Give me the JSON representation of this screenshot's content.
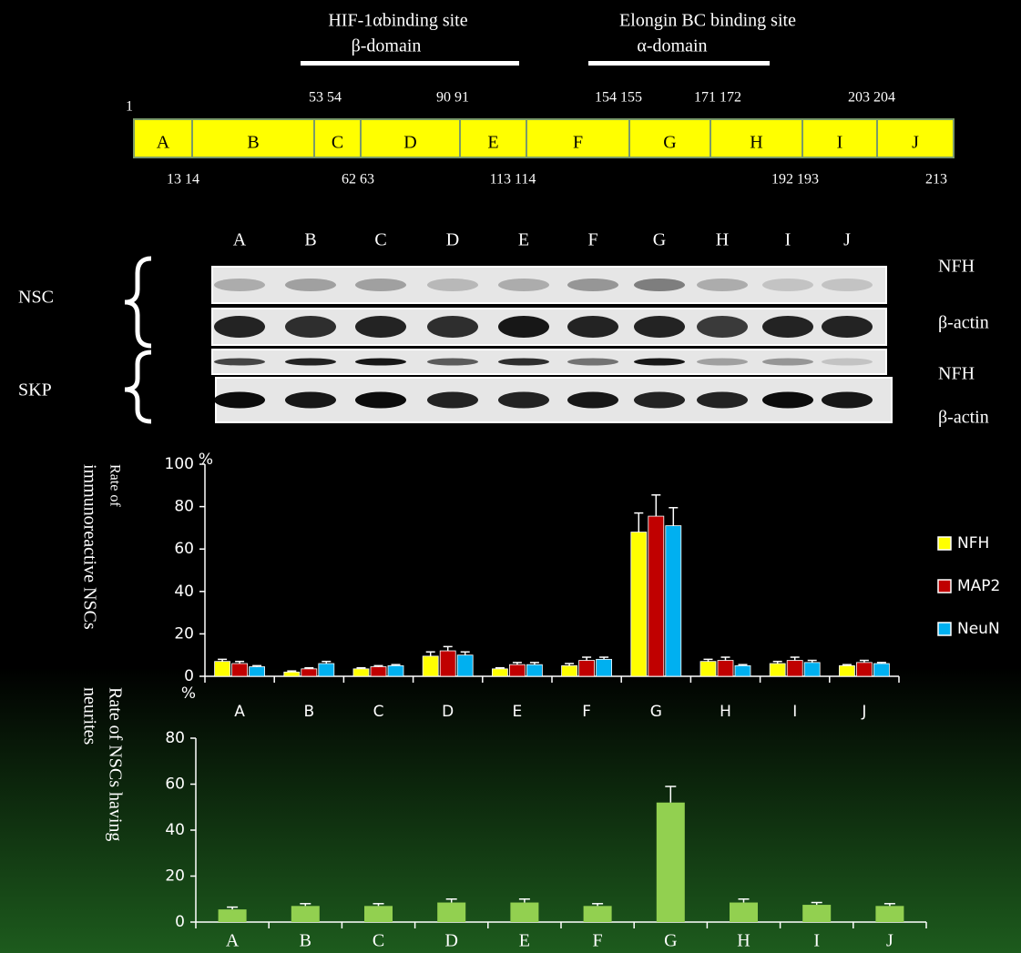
{
  "diagram": {
    "headers": [
      {
        "title": "HIF-1αbinding site",
        "subtitle": "β-domain"
      },
      {
        "title": "Elongin BC binding site",
        "subtitle": "α-domain"
      }
    ],
    "start": "1",
    "segments": [
      "A",
      "B",
      "C",
      "D",
      "E",
      "F",
      "G",
      "H",
      "I",
      "J"
    ],
    "top_numbers": [
      "53 54",
      "90 91",
      "154 155",
      "171 172",
      "203 204"
    ],
    "bottom_numbers": [
      "13 14",
      "62 63",
      "113 114",
      "192 193",
      "213"
    ]
  },
  "blot": {
    "lanes": [
      "A",
      "B",
      "C",
      "D",
      "E",
      "F",
      "G",
      "H",
      "I",
      "J"
    ],
    "groups": [
      {
        "name": "NSC",
        "rows": [
          "NFH",
          "β-actin"
        ]
      },
      {
        "name": "SKP",
        "rows": [
          "NFH",
          "β-actin"
        ]
      }
    ]
  },
  "chart_data": [
    {
      "type": "bar",
      "ylabel": [
        "Rate of",
        "immunoreactive NSCs"
      ],
      "yunit": "%",
      "categories": [
        "A",
        "B",
        "C",
        "D",
        "E",
        "F",
        "G",
        "H",
        "I",
        "J"
      ],
      "series": [
        {
          "name": "NFH",
          "color": "#ffff00",
          "values": [
            7,
            2,
            3.5,
            9.5,
            3.5,
            5,
            68,
            7,
            6,
            5
          ],
          "errors": [
            1,
            0.5,
            0.5,
            2,
            0.5,
            1,
            9,
            1,
            1,
            0.5
          ]
        },
        {
          "name": "MAP2",
          "color": "#c00000",
          "values": [
            6,
            3.5,
            4.5,
            12,
            5.5,
            7.5,
            75.5,
            7.5,
            7.5,
            6.5
          ],
          "errors": [
            1,
            0.5,
            0.5,
            2,
            1,
            1.5,
            10,
            1.5,
            1.5,
            1
          ]
        },
        {
          "name": "NeuN",
          "color": "#00b0f0",
          "values": [
            4.5,
            6,
            5,
            10,
            5.5,
            8,
            71,
            5,
            6.5,
            6
          ],
          "errors": [
            0.5,
            1,
            0.5,
            1.5,
            1,
            1,
            8.5,
            0.5,
            1,
            0.5
          ]
        }
      ],
      "ylim": [
        0,
        100
      ],
      "yticks": [
        0,
        20,
        40,
        60,
        80,
        100
      ],
      "legend": "right"
    },
    {
      "type": "bar",
      "ylabel": [
        "Rate of NSCs having",
        "neurites"
      ],
      "yunit": "%",
      "categories": [
        "A",
        "B",
        "C",
        "D",
        "E",
        "F",
        "G",
        "H",
        "I",
        "J"
      ],
      "values": [
        5.5,
        7,
        7,
        8.5,
        8.5,
        7,
        52,
        8.5,
        7.5,
        7
      ],
      "errors": [
        1,
        1,
        1,
        1.5,
        1.5,
        1,
        7,
        1.5,
        1,
        1
      ],
      "color": "#92d050",
      "ylim": [
        0,
        80
      ],
      "yticks": [
        0,
        20,
        40,
        60,
        80
      ]
    }
  ]
}
